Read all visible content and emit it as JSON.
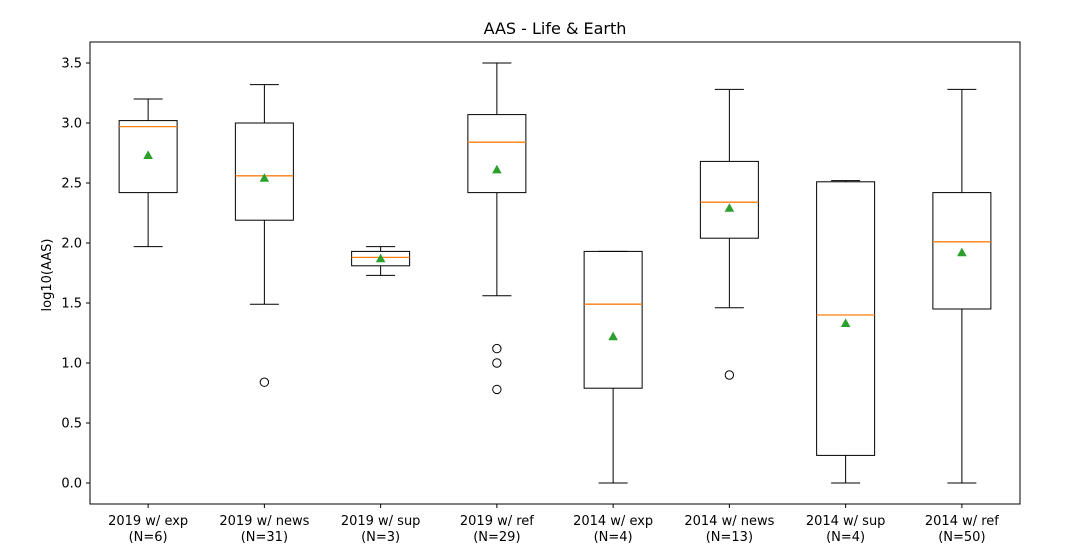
{
  "chart_data": {
    "type": "box",
    "title": "AAS - Life & Earth",
    "xlabel": "",
    "ylabel": "log10(AAS)",
    "ylim": [
      -0.175,
      3.675
    ],
    "yticks": [
      0.0,
      0.5,
      1.0,
      1.5,
      2.0,
      2.5,
      3.0,
      3.5
    ],
    "ytick_labels": [
      "0.0",
      "0.5",
      "1.0",
      "1.5",
      "2.0",
      "2.5",
      "3.0",
      "3.5"
    ],
    "grid": false,
    "categories": [
      [
        "2019 w/ exp",
        "(N=6)"
      ],
      [
        "2019 w/ news",
        "(N=31)"
      ],
      [
        "2019 w/ sup",
        "(N=3)"
      ],
      [
        "2019 w/ ref",
        "(N=29)"
      ],
      [
        "2014 w/ exp",
        "(N=4)"
      ],
      [
        "2014 w/ news",
        "(N=13)"
      ],
      [
        "2014 w/ sup",
        "(N=4)"
      ],
      [
        "2014 w/ ref",
        "(N=50)"
      ]
    ],
    "boxes": [
      {
        "whislo": 1.97,
        "q1": 2.42,
        "med": 2.97,
        "q3": 3.02,
        "whishi": 3.2,
        "mean": 2.73,
        "fliers": []
      },
      {
        "whislo": 1.49,
        "q1": 2.19,
        "med": 2.56,
        "q3": 3.0,
        "whishi": 3.32,
        "mean": 2.54,
        "fliers": [
          0.84
        ]
      },
      {
        "whislo": 1.73,
        "q1": 1.81,
        "med": 1.88,
        "q3": 1.93,
        "whishi": 1.97,
        "mean": 1.87,
        "fliers": []
      },
      {
        "whislo": 1.56,
        "q1": 2.42,
        "med": 2.84,
        "q3": 3.07,
        "whishi": 3.5,
        "mean": 2.61,
        "fliers": [
          1.12,
          1.0,
          0.78
        ]
      },
      {
        "whislo": 0.0,
        "q1": 0.79,
        "med": 1.49,
        "q3": 1.93,
        "whishi": 1.93,
        "mean": 1.22,
        "fliers": []
      },
      {
        "whislo": 1.46,
        "q1": 2.04,
        "med": 2.34,
        "q3": 2.68,
        "whishi": 3.28,
        "mean": 2.29,
        "fliers": [
          0.9
        ]
      },
      {
        "whislo": 0.0,
        "q1": 0.23,
        "med": 1.4,
        "q3": 2.51,
        "whishi": 2.52,
        "mean": 1.33,
        "fliers": []
      },
      {
        "whislo": 0.0,
        "q1": 1.45,
        "med": 2.01,
        "q3": 2.42,
        "whishi": 3.28,
        "mean": 1.92,
        "fliers": []
      }
    ],
    "colors": {
      "box": "#000000",
      "median": "#ff7f0e",
      "mean": "#2ca02c",
      "flier": "#000000"
    }
  }
}
